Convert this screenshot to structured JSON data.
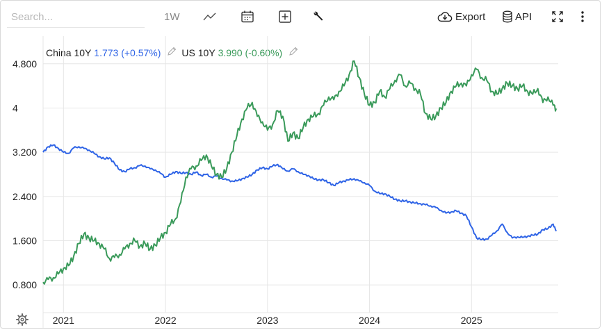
{
  "toolbar": {
    "search_placeholder": "Search...",
    "period_label": "1W",
    "export_label": "Export",
    "api_label": "API",
    "icons": [
      "line-chart-icon",
      "calendar-icon",
      "add-icon",
      "wrench-icon",
      "cloud-download-icon",
      "database-icon",
      "fullscreen-icon",
      "more-icon",
      "settings-icon"
    ]
  },
  "legend": {
    "china": {
      "label": "China 10Y",
      "value": "1.773",
      "change": "(+0.57%)",
      "color": "#2f64e6"
    },
    "us": {
      "label": "US 10Y",
      "value": "3.990",
      "change": "(-0.60%)",
      "color": "#3a9a5a"
    }
  },
  "chart_data": {
    "type": "line",
    "title": "",
    "xlabel": "",
    "ylabel": "",
    "x_tick_labels": [
      "2021",
      "2022",
      "2023",
      "2024",
      "2025"
    ],
    "y_tick_labels": [
      "0.800",
      "1.600",
      "2.400",
      "3.200",
      "4",
      "4.800"
    ],
    "ylim": [
      0.4,
      5.3
    ],
    "xlim": [
      2020.8,
      2025.85
    ],
    "grid": true,
    "series": [
      {
        "name": "China 10Y",
        "color": "#2f64e6",
        "x": [
          2020.8,
          2020.85,
          2020.9,
          2020.95,
          2021.0,
          2021.05,
          2021.1,
          2021.15,
          2021.2,
          2021.25,
          2021.3,
          2021.35,
          2021.4,
          2021.45,
          2021.5,
          2021.55,
          2021.6,
          2021.65,
          2021.7,
          2021.75,
          2021.8,
          2021.85,
          2021.9,
          2021.95,
          2022.0,
          2022.05,
          2022.1,
          2022.15,
          2022.2,
          2022.25,
          2022.3,
          2022.35,
          2022.4,
          2022.45,
          2022.5,
          2022.55,
          2022.6,
          2022.65,
          2022.7,
          2022.75,
          2022.8,
          2022.85,
          2022.9,
          2022.95,
          2023.0,
          2023.05,
          2023.1,
          2023.15,
          2023.2,
          2023.25,
          2023.3,
          2023.35,
          2023.4,
          2023.45,
          2023.5,
          2023.55,
          2023.6,
          2023.65,
          2023.7,
          2023.75,
          2023.8,
          2023.85,
          2023.9,
          2023.95,
          2024.0,
          2024.05,
          2024.1,
          2024.15,
          2024.2,
          2024.25,
          2024.3,
          2024.35,
          2024.4,
          2024.45,
          2024.5,
          2024.55,
          2024.6,
          2024.65,
          2024.7,
          2024.75,
          2024.8,
          2024.85,
          2024.9,
          2024.95,
          2025.0,
          2025.05,
          2025.1,
          2025.15,
          2025.2,
          2025.25,
          2025.3,
          2025.35,
          2025.4,
          2025.45,
          2025.5,
          2025.55,
          2025.6,
          2025.65,
          2025.7,
          2025.75,
          2025.8,
          2025.83
        ],
        "values": [
          3.2,
          3.3,
          3.33,
          3.27,
          3.2,
          3.18,
          3.28,
          3.3,
          3.27,
          3.24,
          3.18,
          3.12,
          3.08,
          3.1,
          3.0,
          2.88,
          2.85,
          2.9,
          2.92,
          2.96,
          2.95,
          2.9,
          2.88,
          2.82,
          2.75,
          2.8,
          2.85,
          2.82,
          2.83,
          2.8,
          2.84,
          2.78,
          2.8,
          2.75,
          2.77,
          2.73,
          2.7,
          2.68,
          2.68,
          2.72,
          2.75,
          2.8,
          2.88,
          2.92,
          2.9,
          2.95,
          2.98,
          2.9,
          2.86,
          2.9,
          2.85,
          2.8,
          2.78,
          2.72,
          2.7,
          2.7,
          2.65,
          2.6,
          2.65,
          2.68,
          2.7,
          2.72,
          2.68,
          2.65,
          2.6,
          2.5,
          2.45,
          2.45,
          2.4,
          2.35,
          2.32,
          2.32,
          2.3,
          2.28,
          2.27,
          2.25,
          2.23,
          2.2,
          2.15,
          2.1,
          2.12,
          2.14,
          2.1,
          2.05,
          1.85,
          1.65,
          1.62,
          1.63,
          1.7,
          1.78,
          1.9,
          1.75,
          1.65,
          1.67,
          1.66,
          1.68,
          1.7,
          1.72,
          1.8,
          1.82,
          1.9,
          1.773
        ]
      },
      {
        "name": "US 10Y",
        "color": "#3a9a5a",
        "x": [
          2020.8,
          2020.85,
          2020.9,
          2020.95,
          2021.0,
          2021.05,
          2021.1,
          2021.15,
          2021.2,
          2021.25,
          2021.3,
          2021.35,
          2021.4,
          2021.45,
          2021.5,
          2021.55,
          2021.6,
          2021.65,
          2021.7,
          2021.75,
          2021.8,
          2021.85,
          2021.9,
          2021.95,
          2022.0,
          2022.05,
          2022.1,
          2022.15,
          2022.2,
          2022.25,
          2022.3,
          2022.35,
          2022.4,
          2022.45,
          2022.5,
          2022.55,
          2022.6,
          2022.65,
          2022.7,
          2022.75,
          2022.8,
          2022.85,
          2022.9,
          2022.95,
          2023.0,
          2023.05,
          2023.1,
          2023.15,
          2023.2,
          2023.25,
          2023.3,
          2023.35,
          2023.4,
          2023.45,
          2023.5,
          2023.55,
          2023.6,
          2023.65,
          2023.7,
          2023.75,
          2023.8,
          2023.85,
          2023.9,
          2023.95,
          2024.0,
          2024.05,
          2024.1,
          2024.15,
          2024.2,
          2024.25,
          2024.3,
          2024.35,
          2024.4,
          2024.45,
          2024.5,
          2024.55,
          2024.6,
          2024.65,
          2024.7,
          2024.75,
          2024.8,
          2024.85,
          2024.9,
          2024.95,
          2025.0,
          2025.05,
          2025.1,
          2025.15,
          2025.2,
          2025.25,
          2025.3,
          2025.35,
          2025.4,
          2025.45,
          2025.5,
          2025.55,
          2025.6,
          2025.65,
          2025.7,
          2025.75,
          2025.8,
          2025.83
        ],
        "values": [
          0.85,
          0.9,
          0.93,
          1.0,
          1.1,
          1.15,
          1.32,
          1.55,
          1.72,
          1.65,
          1.6,
          1.55,
          1.45,
          1.28,
          1.3,
          1.35,
          1.45,
          1.55,
          1.6,
          1.5,
          1.55,
          1.45,
          1.52,
          1.65,
          1.75,
          1.9,
          2.0,
          2.3,
          2.75,
          2.9,
          2.95,
          3.05,
          3.15,
          2.95,
          2.8,
          2.75,
          2.9,
          3.2,
          3.5,
          3.8,
          4.0,
          4.1,
          3.85,
          3.75,
          3.6,
          3.7,
          3.95,
          3.85,
          3.4,
          3.55,
          3.45,
          3.65,
          3.8,
          3.85,
          3.9,
          4.05,
          4.2,
          4.15,
          4.3,
          4.4,
          4.6,
          4.85,
          4.55,
          4.25,
          4.05,
          4.1,
          4.3,
          4.2,
          4.35,
          4.5,
          4.6,
          4.4,
          4.45,
          4.35,
          4.25,
          3.9,
          3.8,
          3.85,
          4.0,
          4.1,
          4.3,
          4.4,
          4.45,
          4.4,
          4.6,
          4.7,
          4.55,
          4.5,
          4.3,
          4.25,
          4.35,
          4.45,
          4.4,
          4.35,
          4.4,
          4.3,
          4.25,
          4.35,
          4.1,
          4.2,
          4.05,
          3.99
        ]
      }
    ]
  }
}
